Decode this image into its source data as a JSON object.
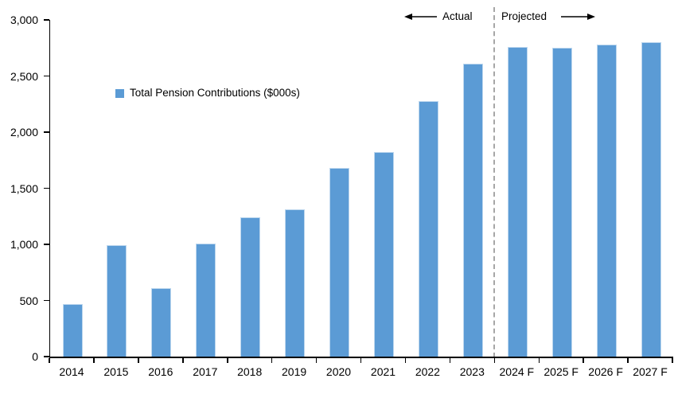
{
  "chart_data": {
    "type": "bar",
    "title": "",
    "categories": [
      "2014",
      "2015",
      "2016",
      "2017",
      "2018",
      "2019",
      "2020",
      "2021",
      "2022",
      "2023",
      "2024 F",
      "2025 F",
      "2026 F",
      "2027 F"
    ],
    "values": [
      470,
      990,
      610,
      1010,
      1240,
      1310,
      1680,
      1820,
      2280,
      2610,
      2760,
      2750,
      2780,
      2800
    ],
    "legend": {
      "label": "Total Pension Contributions ($000s)",
      "marker": "square",
      "position": "inside-upper-left"
    },
    "xlabel": "",
    "ylabel": "",
    "ylim": [
      0,
      3000
    ],
    "ytick_step": 500,
    "ytick_labels": [
      "0",
      "500",
      "1,000",
      "1,500",
      "2,000",
      "2,500",
      "3,000"
    ],
    "grid": false,
    "annotations": {
      "actual_label": "Actual",
      "projected_label": "Projected",
      "divider_after_category": "2023",
      "divider_style": "dashed-vertical-line"
    },
    "colors": {
      "bar": "#5B9BD5",
      "bar_border": "#BDD7EE",
      "divider": "#A6A6A6",
      "axis": "#000000",
      "text": "#000000"
    }
  }
}
